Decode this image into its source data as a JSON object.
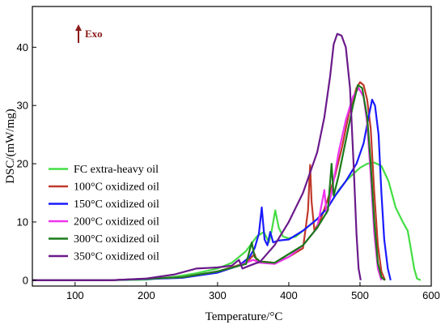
{
  "chart_data": {
    "type": "line",
    "title": "",
    "xlabel": "Temperature/",
    "xlabel_unit": "°C",
    "ylabel": "DSC/(mW/mg)",
    "xlim": [
      40,
      600
    ],
    "ylim": [
      -1,
      47
    ],
    "x_ticks": [
      100,
      200,
      300,
      400,
      500,
      600
    ],
    "y_ticks": [
      0,
      10,
      20,
      30,
      40
    ],
    "grid": false,
    "legend_position": "lower-left",
    "annotation": {
      "text": "Exo",
      "color": "#8b1a1a"
    },
    "series": [
      {
        "name": "FC extra-heavy oil",
        "color": "#44dd44",
        "points": [
          [
            40,
            0
          ],
          [
            150,
            0
          ],
          [
            200,
            0.1
          ],
          [
            240,
            0.6
          ],
          [
            270,
            1.2
          ],
          [
            300,
            2.0
          ],
          [
            320,
            3.0
          ],
          [
            340,
            5.0
          ],
          [
            355,
            7.5
          ],
          [
            365,
            8.3
          ],
          [
            372,
            6.5
          ],
          [
            376,
            8.5
          ],
          [
            381,
            12.0
          ],
          [
            386,
            9.0
          ],
          [
            392,
            7.5
          ],
          [
            400,
            7.2
          ],
          [
            410,
            7.5
          ],
          [
            420,
            8.5
          ],
          [
            430,
            9.5
          ],
          [
            440,
            10.5
          ],
          [
            450,
            12.0
          ],
          [
            460,
            13.5
          ],
          [
            470,
            15.5
          ],
          [
            480,
            17.0
          ],
          [
            490,
            18.2
          ],
          [
            500,
            19.3
          ],
          [
            510,
            20.0
          ],
          [
            520,
            20.2
          ],
          [
            530,
            19.6
          ],
          [
            540,
            17.0
          ],
          [
            550,
            12.5
          ],
          [
            560,
            10.0
          ],
          [
            567,
            8.5
          ],
          [
            572,
            5.0
          ],
          [
            576,
            2.0
          ],
          [
            580,
            0.3
          ],
          [
            585,
            0
          ]
        ]
      },
      {
        "name": "100°C oxidized oil",
        "color": "#c0392b",
        "points": [
          [
            40,
            0
          ],
          [
            150,
            0
          ],
          [
            250,
            0.5
          ],
          [
            300,
            1.5
          ],
          [
            340,
            3.0
          ],
          [
            352,
            4.5
          ],
          [
            356,
            3.0
          ],
          [
            365,
            3.2
          ],
          [
            380,
            3.0
          ],
          [
            400,
            4.0
          ],
          [
            420,
            5.5
          ],
          [
            427,
            12.0
          ],
          [
            430,
            19.8
          ],
          [
            432,
            13.5
          ],
          [
            436,
            8.5
          ],
          [
            445,
            10.5
          ],
          [
            455,
            14.0
          ],
          [
            465,
            18.0
          ],
          [
            475,
            23.0
          ],
          [
            485,
            29.0
          ],
          [
            495,
            33.0
          ],
          [
            500,
            34.0
          ],
          [
            505,
            33.5
          ],
          [
            510,
            31.0
          ],
          [
            515,
            26.0
          ],
          [
            520,
            15.0
          ],
          [
            525,
            6.0
          ],
          [
            530,
            1.5
          ],
          [
            535,
            0
          ]
        ]
      },
      {
        "name": "150°C oxidized oil",
        "color": "#1a1aff",
        "points": [
          [
            40,
            0
          ],
          [
            150,
            0
          ],
          [
            250,
            0.4
          ],
          [
            300,
            1.3
          ],
          [
            330,
            2.5
          ],
          [
            345,
            4.0
          ],
          [
            352,
            5.5
          ],
          [
            358,
            8.0
          ],
          [
            362,
            12.5
          ],
          [
            366,
            7.0
          ],
          [
            370,
            6.0
          ],
          [
            374,
            8.3
          ],
          [
            378,
            6.5
          ],
          [
            385,
            6.8
          ],
          [
            400,
            7.0
          ],
          [
            420,
            8.5
          ],
          [
            440,
            10.5
          ],
          [
            455,
            12.5
          ],
          [
            465,
            14.5
          ],
          [
            480,
            17.0
          ],
          [
            495,
            20.0
          ],
          [
            505,
            23.5
          ],
          [
            512,
            28.0
          ],
          [
            517,
            31.0
          ],
          [
            521,
            30.0
          ],
          [
            526,
            25.0
          ],
          [
            530,
            15.0
          ],
          [
            534,
            7.0
          ],
          [
            539,
            2.0
          ],
          [
            543,
            0
          ]
        ]
      },
      {
        "name": "200°C oxidized oil",
        "color": "#ee33ee",
        "points": [
          [
            40,
            0
          ],
          [
            150,
            0
          ],
          [
            250,
            0.5
          ],
          [
            300,
            1.5
          ],
          [
            330,
            2.5
          ],
          [
            350,
            3.5
          ],
          [
            360,
            3.0
          ],
          [
            380,
            2.8
          ],
          [
            400,
            4.0
          ],
          [
            420,
            6.0
          ],
          [
            440,
            9.0
          ],
          [
            450,
            15.5
          ],
          [
            453,
            11.5
          ],
          [
            460,
            15.0
          ],
          [
            470,
            22.0
          ],
          [
            480,
            27.5
          ],
          [
            490,
            31.5
          ],
          [
            498,
            33.0
          ],
          [
            505,
            31.5
          ],
          [
            510,
            27.0
          ],
          [
            515,
            18.0
          ],
          [
            520,
            8.0
          ],
          [
            525,
            2.0
          ],
          [
            530,
            0
          ]
        ]
      },
      {
        "name": "300°C oxidized oil",
        "color": "#1a7a1a",
        "points": [
          [
            40,
            0
          ],
          [
            150,
            0
          ],
          [
            250,
            0.5
          ],
          [
            300,
            1.5
          ],
          [
            340,
            2.8
          ],
          [
            348,
            6.5
          ],
          [
            352,
            4.0
          ],
          [
            360,
            3.2
          ],
          [
            380,
            3.0
          ],
          [
            400,
            4.5
          ],
          [
            420,
            6.0
          ],
          [
            440,
            9.0
          ],
          [
            455,
            12.0
          ],
          [
            460,
            20.0
          ],
          [
            463,
            14.5
          ],
          [
            470,
            18.0
          ],
          [
            480,
            24.0
          ],
          [
            490,
            30.0
          ],
          [
            497,
            33.5
          ],
          [
            503,
            33.0
          ],
          [
            510,
            28.0
          ],
          [
            515,
            20.0
          ],
          [
            520,
            10.0
          ],
          [
            525,
            3.0
          ],
          [
            530,
            0.5
          ],
          [
            535,
            0
          ]
        ]
      },
      {
        "name": "350°C oxidized oil",
        "color": "#6a1a8a",
        "points": [
          [
            40,
            0
          ],
          [
            150,
            0
          ],
          [
            200,
            0.3
          ],
          [
            240,
            1.0
          ],
          [
            270,
            2.0
          ],
          [
            300,
            2.2
          ],
          [
            320,
            2.5
          ],
          [
            330,
            3.5
          ],
          [
            335,
            2.0
          ],
          [
            345,
            2.5
          ],
          [
            360,
            3.2
          ],
          [
            380,
            6.0
          ],
          [
            400,
            10.0
          ],
          [
            420,
            15.0
          ],
          [
            440,
            22.0
          ],
          [
            450,
            28.0
          ],
          [
            458,
            35.0
          ],
          [
            463,
            40.5
          ],
          [
            468,
            42.3
          ],
          [
            474,
            42.0
          ],
          [
            480,
            40.0
          ],
          [
            486,
            33.0
          ],
          [
            491,
            20.0
          ],
          [
            495,
            8.0
          ],
          [
            498,
            2.0
          ],
          [
            501,
            0
          ]
        ]
      }
    ]
  }
}
